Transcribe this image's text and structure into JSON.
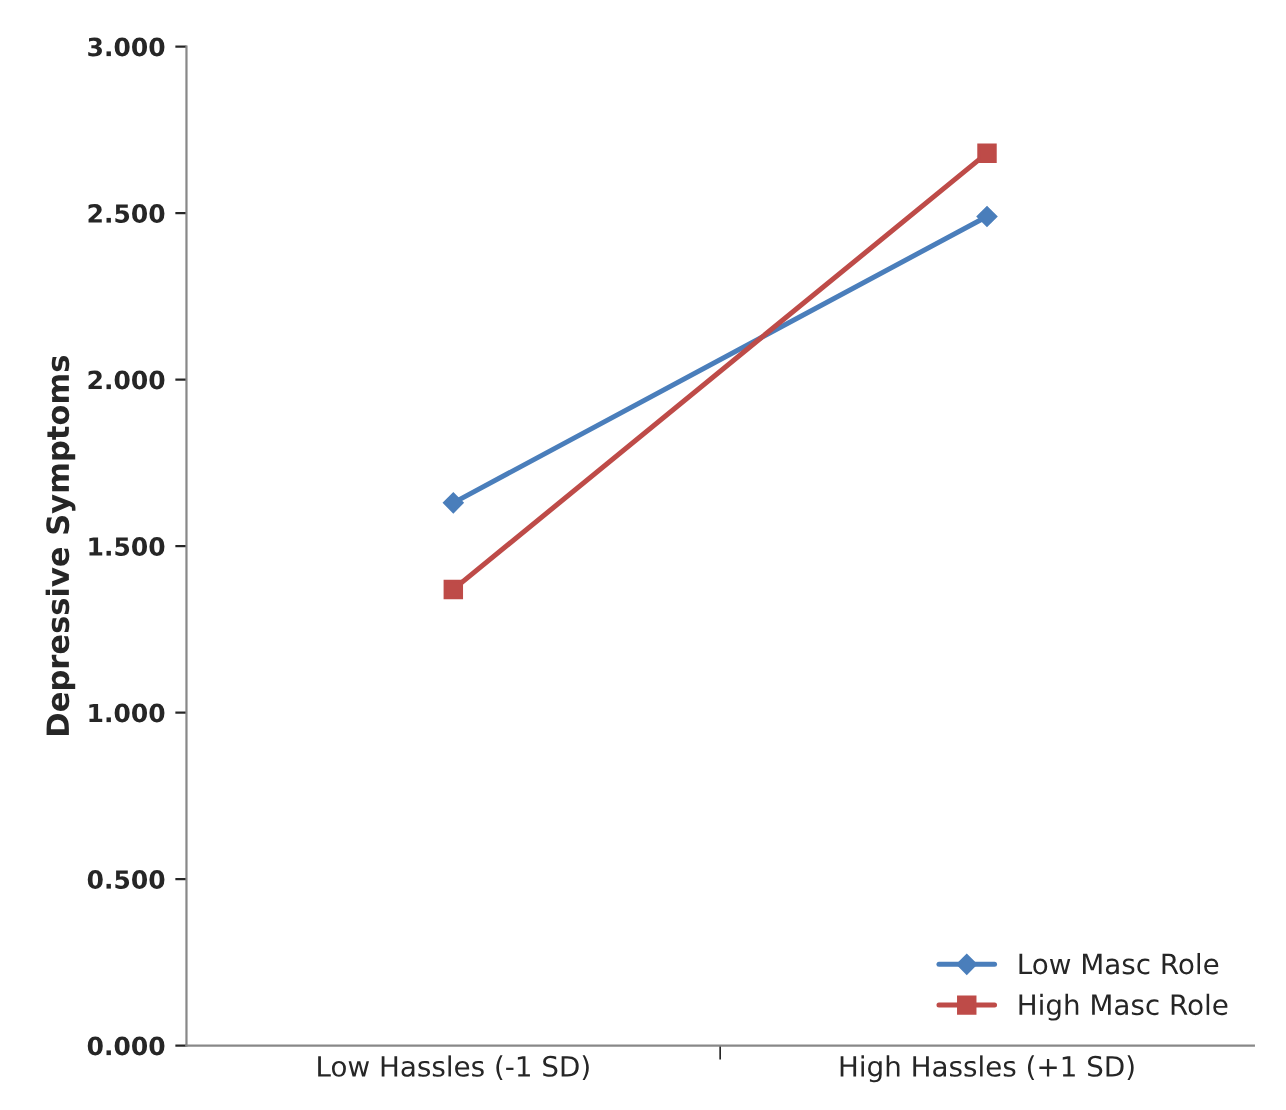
{
  "chart_data": {
    "type": "line",
    "ylabel": "Depressive Symptoms",
    "categories": [
      "Low Hassles (-1 SD)",
      "High Hassles (+1 SD)"
    ],
    "series": [
      {
        "name": "Low Masc Role",
        "color": "#4a7ebb",
        "marker": "diamond",
        "values": [
          1.63,
          2.49
        ]
      },
      {
        "name": "High Masc Role",
        "color": "#be4b48",
        "marker": "square",
        "values": [
          1.37,
          2.68
        ]
      }
    ],
    "ylim": [
      0,
      3
    ],
    "yticks": [
      {
        "value": 0,
        "label": "0.000"
      },
      {
        "value": 0.5,
        "label": "0.500"
      },
      {
        "value": 1,
        "label": "1.000"
      },
      {
        "value": 1.5,
        "label": "1.500"
      },
      {
        "value": 2,
        "label": "2.000"
      },
      {
        "value": 2.5,
        "label": "2.500"
      },
      {
        "value": 3,
        "label": "3.000"
      }
    ],
    "grid": false,
    "legend": "bottom right",
    "line_style": "solid"
  }
}
